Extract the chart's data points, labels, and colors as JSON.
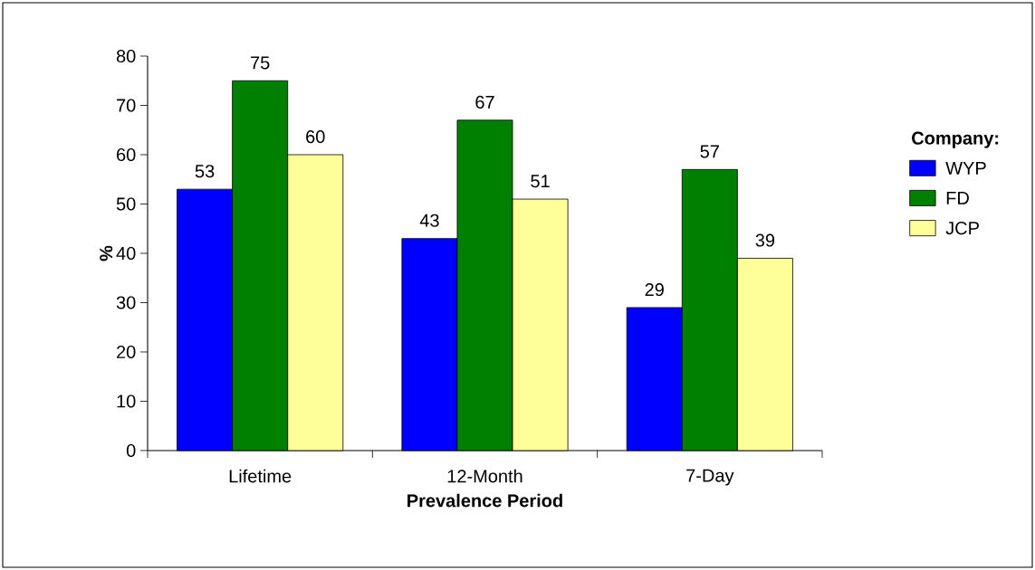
{
  "chart_data": {
    "type": "bar",
    "xlabel": "Prevalence Period",
    "ylabel": "%",
    "legend_title": "Company:",
    "categories": [
      "Lifetime",
      "12-Month",
      "7-Day"
    ],
    "series": [
      {
        "name": "WYP",
        "color": "#0000ff",
        "values": [
          53,
          43,
          29
        ]
      },
      {
        "name": "FD",
        "color": "#008000",
        "values": [
          75,
          67,
          57
        ]
      },
      {
        "name": "JCP",
        "color": "#ffff99",
        "values": [
          60,
          51,
          39
        ]
      }
    ],
    "ylim": [
      0,
      80
    ],
    "yticks": [
      0,
      10,
      20,
      30,
      40,
      50,
      60,
      70,
      80
    ],
    "data_labels": true,
    "legend": "right",
    "grid": false
  }
}
